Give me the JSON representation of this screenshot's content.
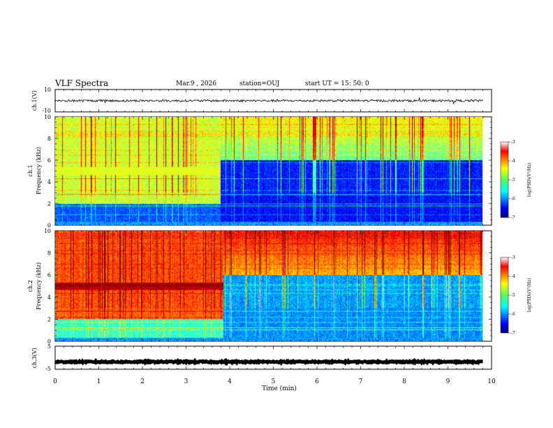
{
  "header": {
    "title": "VLF Spectra",
    "date": "Mar.9 , 2026",
    "station": "station=OUJ",
    "start": "start UT = 15: 50: 0"
  },
  "chart_data": [
    {
      "type": "line",
      "name": "ch1-waveform",
      "ylabel": "ch.1(V)",
      "ylim": [
        -10,
        10
      ],
      "ytick_labels": [
        "10",
        "-10"
      ],
      "xlim": [
        0,
        10
      ],
      "series": [
        {
          "name": "ch.1",
          "baseline": 0,
          "amplitude": 1
        }
      ]
    },
    {
      "type": "heatmap",
      "name": "ch1-spectrogram",
      "channel_label": "ch.1",
      "ylabel": "Frequency (kHz)",
      "ylim": [
        0,
        10
      ],
      "ytick_labels": [
        "0",
        "2",
        "4",
        "6",
        "8",
        "10"
      ],
      "xlim": [
        0,
        10
      ],
      "data_end_min": 9.8,
      "colorbar": {
        "label": "log(PSD)(V²/Hz)",
        "range": [
          -7,
          -3
        ],
        "tick_labels": [
          "-3",
          "-4",
          "-5",
          "-6",
          "-7"
        ]
      },
      "features": {
        "band_kHz": [
          4.6,
          5.4
        ],
        "band_until_min": 3.8,
        "band_level": -4.6
      }
    },
    {
      "type": "heatmap",
      "name": "ch2-spectrogram",
      "channel_label": "ch.2",
      "ylabel": "Frequency (kHz)",
      "ylim": [
        0,
        10
      ],
      "ytick_labels": [
        "0",
        "2",
        "4",
        "6",
        "8",
        "10"
      ],
      "xlim": [
        0,
        10
      ],
      "data_end_min": 9.8,
      "colorbar": {
        "label": "log(PSD)(V²/Hz)",
        "range": [
          -7,
          -3
        ],
        "tick_labels": [
          "-3",
          "-4",
          "-5",
          "-6",
          "-7"
        ]
      },
      "features": {
        "band_kHz": [
          4.7,
          5.3
        ],
        "band_until_min": 3.85,
        "band_level": -3.2
      }
    },
    {
      "type": "line",
      "name": "ch3-waveform",
      "ylabel": "ch.3(V)",
      "ylim": [
        -5,
        5
      ],
      "ytick_labels": [
        "5",
        "-5"
      ],
      "xlim": [
        0,
        10
      ],
      "series": [
        {
          "name": "ch.3",
          "baseline": -1.8,
          "amplitude": 0.3
        }
      ]
    }
  ],
  "xaxis": {
    "label": "Time (min)",
    "tick_labels": [
      "0",
      "1",
      "2",
      "3",
      "4",
      "5",
      "6",
      "7",
      "8",
      "9",
      "10"
    ]
  }
}
